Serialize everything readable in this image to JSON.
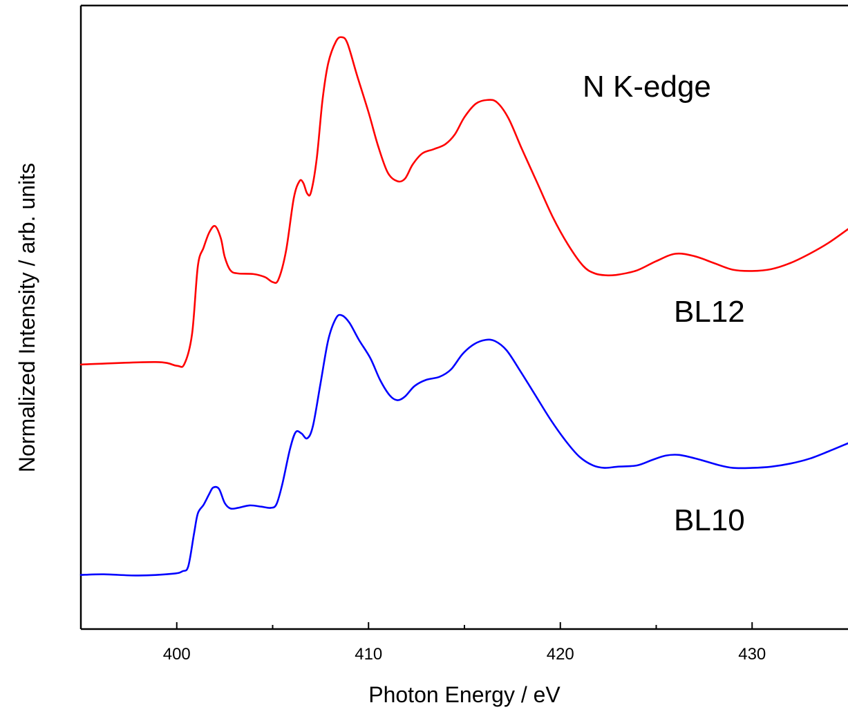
{
  "chart_data": {
    "type": "line",
    "title": "",
    "xlabel": "Photon Energy / eV",
    "ylabel": "Normalized Intensity / arb. units",
    "xlim": [
      395,
      435
    ],
    "ylim": [
      0,
      100
    ],
    "x_ticks": [
      400,
      410,
      420,
      430
    ],
    "x_minor_ticks": [
      405,
      415,
      425
    ],
    "grid": false,
    "legend": "none",
    "annotations": [
      "N K-edge",
      "BL12",
      "BL10"
    ],
    "series": [
      {
        "label": "BL12",
        "color": "#ff0000",
        "points": [
          [
            395,
            43.0
          ],
          [
            398.9,
            43.4
          ],
          [
            400.0,
            42.8
          ],
          [
            400.4,
            43.1
          ],
          [
            400.8,
            48.0
          ],
          [
            401.1,
            59.0
          ],
          [
            401.4,
            62.0
          ],
          [
            401.7,
            64.5
          ],
          [
            402.0,
            65.5
          ],
          [
            402.3,
            63.5
          ],
          [
            402.5,
            60.5
          ],
          [
            402.8,
            58.3
          ],
          [
            403.2,
            57.8
          ],
          [
            404.0,
            57.7
          ],
          [
            404.6,
            57.2
          ],
          [
            405.0,
            56.4
          ],
          [
            405.3,
            56.8
          ],
          [
            405.7,
            61.5
          ],
          [
            406.1,
            70.0
          ],
          [
            406.4,
            72.8
          ],
          [
            406.6,
            72.5
          ],
          [
            406.8,
            70.8
          ],
          [
            407.0,
            71.0
          ],
          [
            407.3,
            76.5
          ],
          [
            407.6,
            86.0
          ],
          [
            407.9,
            92.0
          ],
          [
            408.3,
            95.5
          ],
          [
            408.6,
            96.2
          ],
          [
            408.9,
            95.2
          ],
          [
            409.4,
            90.0
          ],
          [
            410.0,
            84.0
          ],
          [
            410.5,
            78.5
          ],
          [
            411.0,
            74.2
          ],
          [
            411.5,
            72.8
          ],
          [
            411.9,
            73.2
          ],
          [
            412.3,
            75.5
          ],
          [
            412.8,
            77.3
          ],
          [
            413.4,
            78.0
          ],
          [
            414.0,
            78.8
          ],
          [
            414.5,
            80.4
          ],
          [
            415.0,
            83.2
          ],
          [
            415.6,
            85.4
          ],
          [
            416.2,
            86.0
          ],
          [
            416.7,
            85.6
          ],
          [
            417.3,
            83.0
          ],
          [
            418.0,
            78.0
          ],
          [
            418.8,
            72.5
          ],
          [
            419.6,
            67.0
          ],
          [
            420.4,
            62.5
          ],
          [
            421.2,
            59.0
          ],
          [
            421.8,
            57.8
          ],
          [
            422.4,
            57.5
          ],
          [
            423.0,
            57.6
          ],
          [
            424.0,
            58.3
          ],
          [
            425.0,
            59.8
          ],
          [
            426.0,
            61.0
          ],
          [
            427.0,
            60.6
          ],
          [
            428.0,
            59.5
          ],
          [
            429.0,
            58.4
          ],
          [
            430.0,
            58.2
          ],
          [
            431.0,
            58.5
          ],
          [
            432.0,
            59.5
          ],
          [
            433.0,
            61.0
          ],
          [
            434.0,
            62.8
          ],
          [
            435.0,
            65.0
          ]
        ]
      },
      {
        "label": "BL10",
        "color": "#0000ff",
        "points": [
          [
            395,
            8.8
          ],
          [
            396.2,
            8.9
          ],
          [
            398.0,
            8.7
          ],
          [
            399.8,
            9.0
          ],
          [
            400.3,
            9.4
          ],
          [
            400.6,
            10.2
          ],
          [
            400.9,
            15.5
          ],
          [
            401.1,
            18.8
          ],
          [
            401.4,
            20.2
          ],
          [
            401.7,
            22.0
          ],
          [
            401.9,
            23.0
          ],
          [
            402.2,
            22.8
          ],
          [
            402.5,
            20.5
          ],
          [
            402.8,
            19.6
          ],
          [
            403.2,
            19.7
          ],
          [
            403.8,
            20.1
          ],
          [
            404.4,
            19.9
          ],
          [
            404.9,
            19.7
          ],
          [
            405.2,
            20.3
          ],
          [
            405.5,
            23.5
          ],
          [
            405.9,
            29.2
          ],
          [
            406.2,
            32.0
          ],
          [
            406.5,
            31.8
          ],
          [
            406.8,
            31.0
          ],
          [
            407.1,
            33.0
          ],
          [
            407.5,
            40.0
          ],
          [
            407.9,
            47.0
          ],
          [
            408.3,
            50.5
          ],
          [
            408.6,
            51.0
          ],
          [
            409.0,
            49.8
          ],
          [
            409.5,
            47.0
          ],
          [
            410.1,
            44.0
          ],
          [
            410.6,
            40.5
          ],
          [
            411.1,
            38.0
          ],
          [
            411.5,
            37.2
          ],
          [
            411.9,
            37.8
          ],
          [
            412.4,
            39.5
          ],
          [
            413.0,
            40.5
          ],
          [
            413.7,
            41.0
          ],
          [
            414.3,
            42.2
          ],
          [
            414.9,
            44.7
          ],
          [
            415.5,
            46.3
          ],
          [
            416.1,
            47.0
          ],
          [
            416.6,
            46.8
          ],
          [
            417.2,
            45.3
          ],
          [
            417.9,
            42.0
          ],
          [
            418.7,
            38.0
          ],
          [
            419.5,
            34.0
          ],
          [
            420.3,
            30.5
          ],
          [
            421.0,
            28.0
          ],
          [
            421.7,
            26.6
          ],
          [
            422.3,
            26.2
          ],
          [
            423.0,
            26.4
          ],
          [
            424.0,
            26.6
          ],
          [
            424.8,
            27.5
          ],
          [
            425.5,
            28.2
          ],
          [
            426.2,
            28.3
          ],
          [
            427.2,
            27.6
          ],
          [
            428.2,
            26.7
          ],
          [
            429.0,
            26.2
          ],
          [
            430.0,
            26.2
          ],
          [
            431.0,
            26.4
          ],
          [
            432.0,
            26.9
          ],
          [
            433.0,
            27.7
          ],
          [
            434.0,
            28.9
          ],
          [
            435.0,
            30.2
          ]
        ]
      }
    ]
  }
}
